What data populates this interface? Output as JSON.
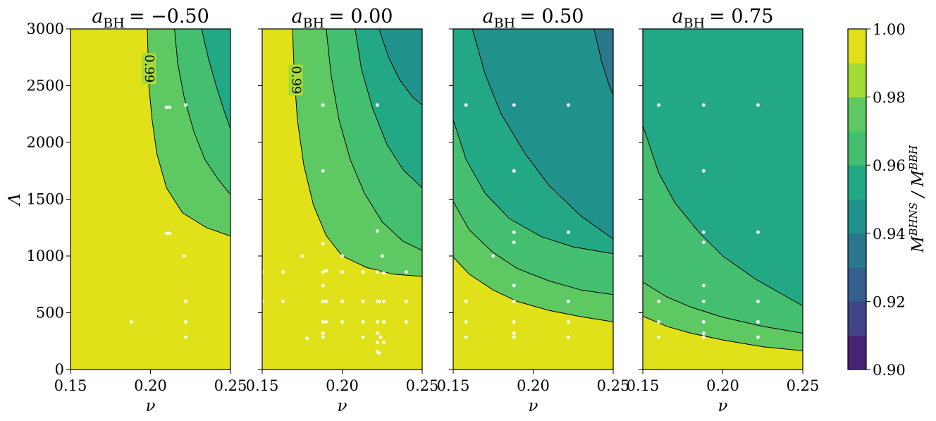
{
  "colors": {
    "levels": [
      "#440154",
      "#482475",
      "#414487",
      "#355f8d",
      "#2a788e",
      "#21918c",
      "#22a884",
      "#44bf70",
      "#7ad151",
      "#bddf26",
      "#fde725"
    ],
    "band_fills": [
      "#440154",
      "#482475",
      "#414487",
      "#355f8d",
      "#2a788e",
      "#21918c",
      "#22a884",
      "#44bf70",
      "#5ec962",
      "#a5db36",
      "#e0e119"
    ],
    "sim_points": "#ffffff",
    "contour_lines": "#000000"
  },
  "chart_data": [
    {
      "type": "contour",
      "title": {
        "symbol": "a",
        "subscript": "BH",
        "value": "= −0.50"
      },
      "xlabel": "ν",
      "ylabel": "Λ",
      "xlim": [
        0.15,
        0.25
      ],
      "ylim": [
        0,
        3000
      ],
      "xticks": [
        "0.15",
        "0.20",
        "0.25"
      ],
      "yticks": [
        "0",
        "500",
        "1000",
        "1500",
        "2000",
        "2500",
        "3000"
      ],
      "contours": [
        {
          "level": 0.99,
          "points": [
            [
              0.198,
              3000
            ],
            [
              0.199,
              2500
            ],
            [
              0.201,
              2200
            ],
            [
              0.204,
              1900
            ],
            [
              0.21,
              1600
            ],
            [
              0.22,
              1380
            ],
            [
              0.235,
              1250
            ],
            [
              0.25,
              1175
            ]
          ]
        },
        {
          "level": 0.98,
          "points": [
            [
              0.215,
              3000
            ],
            [
              0.217,
              2700
            ],
            [
              0.221,
              2400
            ],
            [
              0.227,
              2100
            ],
            [
              0.234,
              1850
            ],
            [
              0.242,
              1680
            ],
            [
              0.25,
              1540
            ]
          ]
        },
        {
          "level": 0.97,
          "points": [
            [
              0.232,
              3000
            ],
            [
              0.236,
              2750
            ],
            [
              0.241,
              2500
            ],
            [
              0.246,
              2280
            ],
            [
              0.25,
              2120
            ]
          ]
        }
      ],
      "contour_labels": [
        {
          "text": "0.99",
          "x": 0.199,
          "y": 2650
        }
      ],
      "points": [
        [
          0.188,
          420
        ],
        [
          0.21,
          2310
        ],
        [
          0.212,
          2310
        ],
        [
          0.222,
          2330
        ],
        [
          0.21,
          1200
        ],
        [
          0.212,
          1200
        ],
        [
          0.221,
          1000
        ],
        [
          0.222,
          600
        ],
        [
          0.222,
          420
        ],
        [
          0.222,
          285
        ]
      ]
    },
    {
      "type": "contour",
      "title": {
        "symbol": "a",
        "subscript": "BH",
        "value": "= 0.00"
      },
      "xlabel": "ν",
      "xlim": [
        0.15,
        0.25
      ],
      "ylim": [
        0,
        3000
      ],
      "xticks": [
        "0.15",
        "0.20",
        "0.25"
      ],
      "contours": [
        {
          "level": 0.99,
          "points": [
            [
              0.169,
              3000
            ],
            [
              0.17,
              2600
            ],
            [
              0.172,
              2200
            ],
            [
              0.176,
              1800
            ],
            [
              0.182,
              1450
            ],
            [
              0.19,
              1180
            ],
            [
              0.2,
              1000
            ],
            [
              0.215,
              900
            ],
            [
              0.232,
              840
            ],
            [
              0.25,
              820
            ]
          ]
        },
        {
          "level": 0.98,
          "points": [
            [
              0.19,
              3000
            ],
            [
              0.193,
              2600
            ],
            [
              0.198,
              2200
            ],
            [
              0.205,
              1850
            ],
            [
              0.214,
              1550
            ],
            [
              0.225,
              1300
            ],
            [
              0.238,
              1130
            ],
            [
              0.25,
              1050
            ]
          ]
        },
        {
          "level": 0.97,
          "points": [
            [
              0.208,
              3000
            ],
            [
              0.212,
              2650
            ],
            [
              0.219,
              2300
            ],
            [
              0.228,
              1980
            ],
            [
              0.238,
              1760
            ],
            [
              0.25,
              1600
            ]
          ]
        },
        {
          "level": 0.96,
          "points": [
            [
              0.223,
              3000
            ],
            [
              0.229,
              2750
            ],
            [
              0.236,
              2550
            ],
            [
              0.244,
              2400
            ],
            [
              0.25,
              2330
            ]
          ]
        }
      ],
      "contour_labels": [
        {
          "text": "0.99",
          "x": 0.171,
          "y": 2550
        }
      ],
      "points": [
        [
          0.188,
          2330
        ],
        [
          0.222,
          2330
        ],
        [
          0.188,
          1750
        ],
        [
          0.188,
          1110
        ],
        [
          0.222,
          1220
        ],
        [
          0.175,
          1000
        ],
        [
          0.2,
          1000
        ],
        [
          0.225,
          1000
        ],
        [
          0.15,
          860
        ],
        [
          0.163,
          860
        ],
        [
          0.188,
          860
        ],
        [
          0.19,
          870
        ],
        [
          0.2,
          860
        ],
        [
          0.213,
          860
        ],
        [
          0.222,
          860
        ],
        [
          0.226,
          850
        ],
        [
          0.24,
          860
        ],
        [
          0.188,
          740
        ],
        [
          0.15,
          600
        ],
        [
          0.163,
          600
        ],
        [
          0.188,
          600
        ],
        [
          0.19,
          600
        ],
        [
          0.2,
          600
        ],
        [
          0.213,
          600
        ],
        [
          0.222,
          600
        ],
        [
          0.223,
          600
        ],
        [
          0.226,
          600
        ],
        [
          0.24,
          600
        ],
        [
          0.188,
          420
        ],
        [
          0.19,
          420
        ],
        [
          0.2,
          420
        ],
        [
          0.213,
          420
        ],
        [
          0.222,
          420
        ],
        [
          0.226,
          420
        ],
        [
          0.24,
          420
        ],
        [
          0.188,
          320
        ],
        [
          0.188,
          285
        ],
        [
          0.213,
          285
        ],
        [
          0.222,
          320
        ],
        [
          0.224,
          285
        ],
        [
          0.222,
          240
        ],
        [
          0.226,
          240
        ],
        [
          0.178,
          275
        ],
        [
          0.222,
          160
        ],
        [
          0.223,
          145
        ]
      ]
    },
    {
      "type": "contour",
      "title": {
        "symbol": "a",
        "subscript": "BH",
        "value": "= 0.50"
      },
      "xlabel": "ν",
      "xlim": [
        0.15,
        0.25
      ],
      "ylim": [
        0,
        3000
      ],
      "xticks": [
        "0.15",
        "0.20",
        "0.25"
      ],
      "contours": [
        {
          "level": 0.99,
          "points": [
            [
              0.15,
              990
            ],
            [
              0.16,
              840
            ],
            [
              0.175,
              700
            ],
            [
              0.19,
              600
            ],
            [
              0.21,
              520
            ],
            [
              0.23,
              465
            ],
            [
              0.25,
              420
            ]
          ]
        },
        {
          "level": 0.98,
          "points": [
            [
              0.15,
              1480
            ],
            [
              0.16,
              1230
            ],
            [
              0.175,
              1030
            ],
            [
              0.19,
              890
            ],
            [
              0.21,
              780
            ],
            [
              0.23,
              700
            ],
            [
              0.25,
              660
            ]
          ]
        },
        {
          "level": 0.97,
          "points": [
            [
              0.15,
              2200
            ],
            [
              0.158,
              1850
            ],
            [
              0.17,
              1550
            ],
            [
              0.185,
              1330
            ],
            [
              0.205,
              1170
            ],
            [
              0.225,
              1080
            ],
            [
              0.25,
              1020
            ]
          ]
        },
        {
          "level": 0.96,
          "points": [
            [
              0.162,
              3000
            ],
            [
              0.17,
              2600
            ],
            [
              0.18,
              2250
            ],
            [
              0.195,
              1900
            ],
            [
              0.21,
              1620
            ],
            [
              0.23,
              1350
            ],
            [
              0.25,
              1150
            ]
          ]
        },
        {
          "level": 0.95,
          "points": [
            [
              0.238,
              3000
            ],
            [
              0.243,
              2700
            ],
            [
              0.248,
              2480
            ],
            [
              0.25,
              2420
            ]
          ]
        }
      ],
      "contour_labels": [],
      "points": [
        [
          0.158,
          2330
        ],
        [
          0.188,
          2330
        ],
        [
          0.222,
          2330
        ],
        [
          0.188,
          1750
        ],
        [
          0.188,
          1210
        ],
        [
          0.222,
          1210
        ],
        [
          0.188,
          1120
        ],
        [
          0.175,
          1000
        ],
        [
          0.188,
          740
        ],
        [
          0.158,
          600
        ],
        [
          0.188,
          600
        ],
        [
          0.222,
          600
        ],
        [
          0.158,
          420
        ],
        [
          0.188,
          420
        ],
        [
          0.222,
          420
        ],
        [
          0.158,
          285
        ],
        [
          0.188,
          285
        ],
        [
          0.188,
          320
        ],
        [
          0.222,
          285
        ]
      ]
    },
    {
      "type": "contour",
      "title": {
        "symbol": "a",
        "subscript": "BH",
        "value": "= 0.75"
      },
      "xlabel": "ν",
      "xlim": [
        0.15,
        0.25
      ],
      "ylim": [
        0,
        3000
      ],
      "xticks": [
        "0.15",
        "0.20",
        "0.25"
      ],
      "contours": [
        {
          "level": 0.99,
          "points": [
            [
              0.15,
              470
            ],
            [
              0.165,
              380
            ],
            [
              0.18,
              320
            ],
            [
              0.2,
              260
            ],
            [
              0.225,
              200
            ],
            [
              0.25,
              165
            ]
          ]
        },
        {
          "level": 0.98,
          "points": [
            [
              0.15,
              770
            ],
            [
              0.165,
              640
            ],
            [
              0.18,
              550
            ],
            [
              0.2,
              460
            ],
            [
              0.225,
              380
            ],
            [
              0.25,
              320
            ]
          ]
        },
        {
          "level": 0.97,
          "points": [
            [
              0.15,
              2150
            ],
            [
              0.16,
              1730
            ],
            [
              0.17,
              1470
            ],
            [
              0.185,
              1210
            ],
            [
              0.2,
              1000
            ],
            [
              0.22,
              800
            ],
            [
              0.24,
              640
            ],
            [
              0.25,
              560
            ]
          ]
        }
      ],
      "contour_labels": [],
      "points": [
        [
          0.16,
          2330
        ],
        [
          0.188,
          2330
        ],
        [
          0.222,
          2330
        ],
        [
          0.188,
          1750
        ],
        [
          0.188,
          1210
        ],
        [
          0.222,
          1210
        ],
        [
          0.188,
          1120
        ],
        [
          0.188,
          740
        ],
        [
          0.16,
          600
        ],
        [
          0.188,
          600
        ],
        [
          0.222,
          600
        ],
        [
          0.16,
          420
        ],
        [
          0.188,
          420
        ],
        [
          0.222,
          420
        ],
        [
          0.16,
          285
        ],
        [
          0.188,
          285
        ],
        [
          0.188,
          320
        ],
        [
          0.222,
          285
        ]
      ]
    }
  ],
  "colorbar": {
    "label": "M•BHNS / M•BBH",
    "label_base": "M",
    "label_sub": "•",
    "label_sup_num": "BHNS",
    "label_sup_den": "BBH",
    "label_sep": " / ",
    "range": [
      0.9,
      1.0
    ],
    "ticks": [
      "0.90",
      "0.92",
      "0.94",
      "0.96",
      "0.98",
      "1.00"
    ]
  }
}
